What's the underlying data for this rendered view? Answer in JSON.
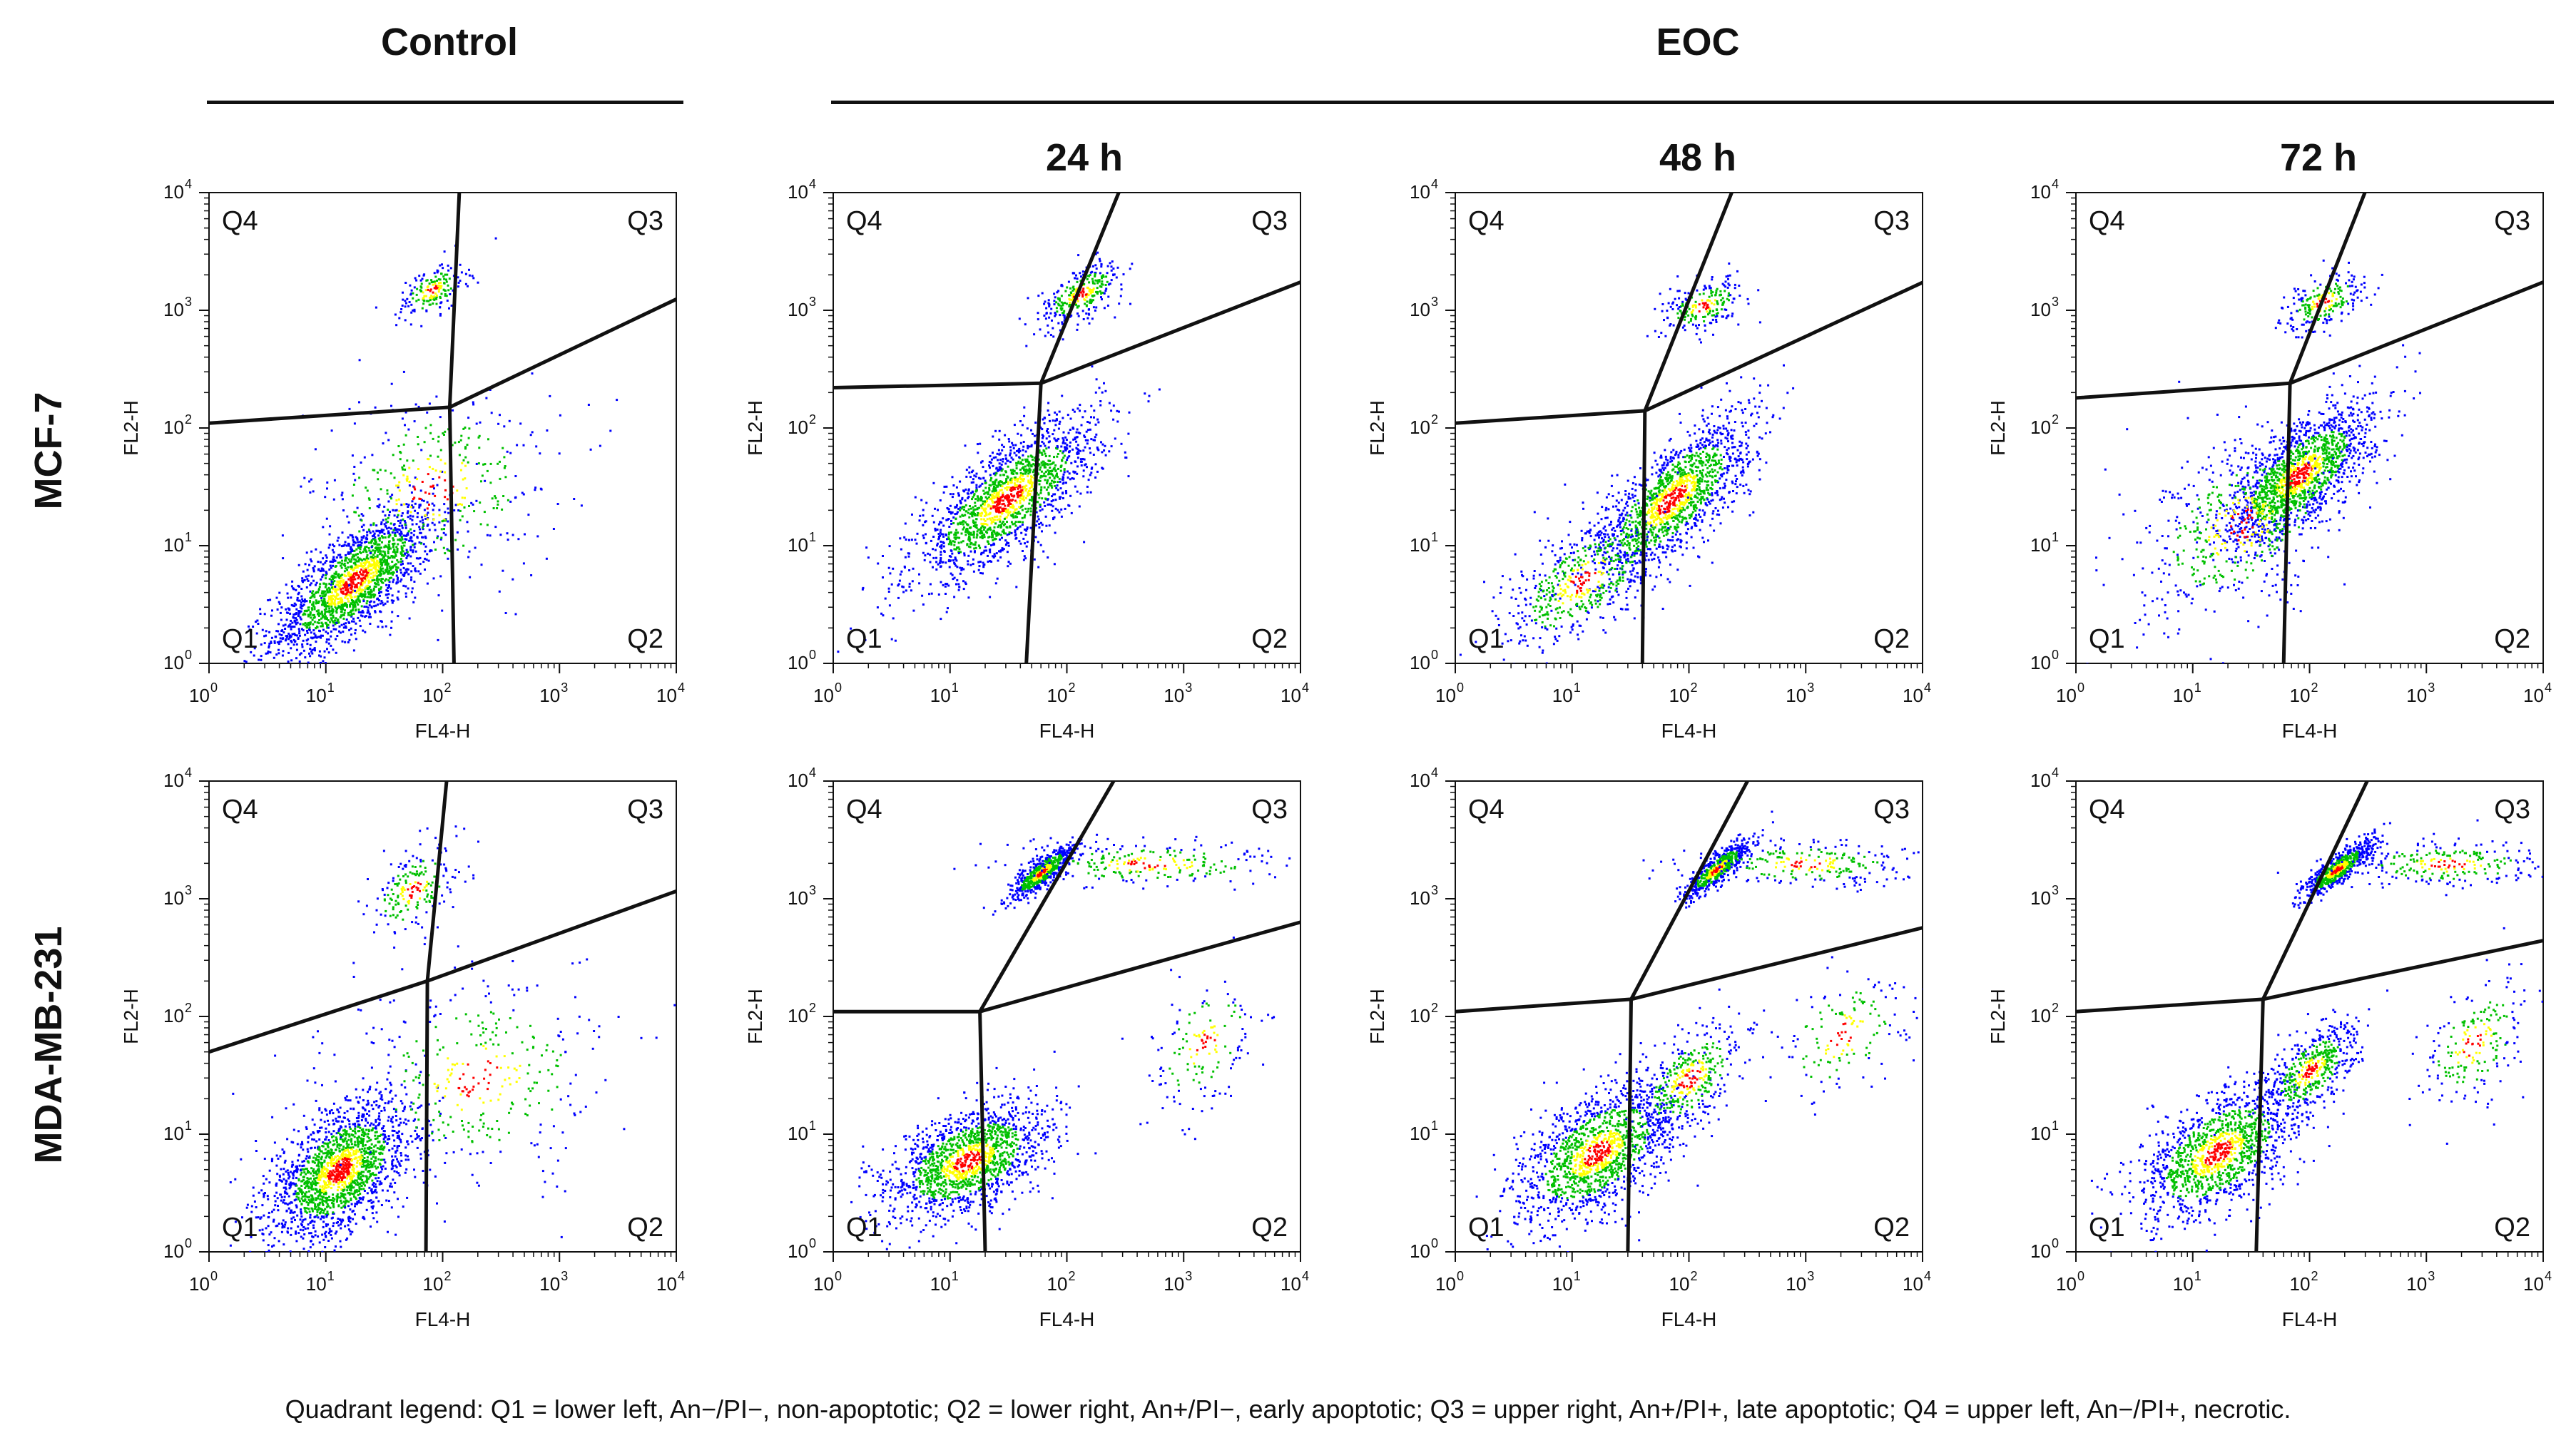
{
  "figure": {
    "column_groups": [
      {
        "label": "Control"
      },
      {
        "label": "EOC"
      }
    ],
    "time_labels": [
      "24 h",
      "48 h",
      "72 h"
    ],
    "row_labels": [
      "MCF-7",
      "MDA-MB-231"
    ],
    "caption": "Quadrant legend: Q1 = lower left, An−/PI−, non-apoptotic; Q2 = lower right, An+/PI−, early apoptotic; Q3 = upper right, An+/PI+, late apoptotic; Q4 = upper left, An−/PI+, necrotic.",
    "colors": {
      "low_density": "#0000ff",
      "mid_density": "#00c000",
      "mid_high_density": "#ffff00",
      "high_density": "#ff0000",
      "gate_line": "#111111"
    }
  },
  "chart_data": [
    {
      "type": "scatter",
      "panel": "MCF-7 Control",
      "xlabel": "FL4-H",
      "ylabel": "FL2-H",
      "scale": "log10",
      "xlim": [
        1,
        10000
      ],
      "ylim": [
        1,
        10000
      ],
      "quadrant_labels": [
        "Q1",
        "Q2",
        "Q3",
        "Q4"
      ],
      "gate_vertical": [
        [
          125,
          1
        ],
        [
          115,
          150
        ],
        [
          140,
          12000
        ]
      ],
      "gate_horizontal": [
        [
          1,
          110
        ],
        [
          115,
          150
        ],
        [
          11000,
          1300
        ]
      ],
      "populations": [
        {
          "cx": 17,
          "cy": 5,
          "sx": 0.35,
          "sy": 0.32,
          "n": 1800,
          "r": 0.75
        },
        {
          "cx": 80,
          "cy": 30,
          "sx": 0.55,
          "sy": 0.45,
          "n": 400,
          "r": 0.2
        },
        {
          "cx": 80,
          "cy": 1500,
          "sx": 0.15,
          "sy": 0.12,
          "n": 180,
          "r": 0.5
        }
      ]
    },
    {
      "type": "scatter",
      "panel": "MCF-7 EOC 24 h",
      "xlabel": "FL4-H",
      "ylabel": "FL2-H",
      "scale": "log10",
      "xlim": [
        1,
        10000
      ],
      "ylim": [
        1,
        10000
      ],
      "quadrant_labels": [
        "Q1",
        "Q2",
        "Q3",
        "Q4"
      ],
      "gate_vertical": [
        [
          45,
          1
        ],
        [
          60,
          240
        ],
        [
          300,
          12000
        ]
      ],
      "gate_horizontal": [
        [
          1,
          220
        ],
        [
          60,
          240
        ],
        [
          11000,
          1800
        ]
      ],
      "populations": [
        {
          "cx": 30,
          "cy": 25,
          "sx": 0.4,
          "sy": 0.35,
          "n": 1700,
          "r": 0.75
        },
        {
          "cx": 130,
          "cy": 1400,
          "sx": 0.18,
          "sy": 0.14,
          "n": 300,
          "r": 0.6
        }
      ]
    },
    {
      "type": "scatter",
      "panel": "MCF-7 EOC 48 h",
      "xlabel": "FL4-H",
      "ylabel": "FL2-H",
      "scale": "log10",
      "xlim": [
        1,
        10000
      ],
      "ylim": [
        1,
        10000
      ],
      "quadrant_labels": [
        "Q1",
        "Q2",
        "Q3",
        "Q4"
      ],
      "gate_vertical": [
        [
          40,
          1
        ],
        [
          42,
          140
        ],
        [
          250,
          12000
        ]
      ],
      "gate_horizontal": [
        [
          1,
          110
        ],
        [
          42,
          140
        ],
        [
          11000,
          1800
        ]
      ],
      "populations": [
        {
          "cx": 70,
          "cy": 25,
          "sx": 0.35,
          "sy": 0.35,
          "n": 1500,
          "r": 0.75
        },
        {
          "cx": 12,
          "cy": 5,
          "sx": 0.35,
          "sy": 0.3,
          "n": 500,
          "r": 0.6
        },
        {
          "cx": 130,
          "cy": 1100,
          "sx": 0.18,
          "sy": 0.12,
          "n": 220,
          "r": 0.5
        }
      ]
    },
    {
      "type": "scatter",
      "panel": "MCF-7 EOC 72 h",
      "xlabel": "FL4-H",
      "ylabel": "FL2-H",
      "scale": "log10",
      "xlim": [
        1,
        10000
      ],
      "ylim": [
        1,
        10000
      ],
      "quadrant_labels": [
        "Q1",
        "Q2",
        "Q3",
        "Q4"
      ],
      "gate_vertical": [
        [
          60,
          1
        ],
        [
          68,
          240
        ],
        [
          320,
          12000
        ]
      ],
      "gate_horizontal": [
        [
          1,
          180
        ],
        [
          68,
          240
        ],
        [
          11000,
          1800
        ]
      ],
      "populations": [
        {
          "cx": 80,
          "cy": 40,
          "sx": 0.32,
          "sy": 0.3,
          "n": 1600,
          "r": 0.7
        },
        {
          "cx": 25,
          "cy": 15,
          "sx": 0.45,
          "sy": 0.4,
          "n": 500,
          "r": 0.4
        },
        {
          "cx": 130,
          "cy": 1200,
          "sx": 0.18,
          "sy": 0.13,
          "n": 220,
          "r": 0.5
        }
      ]
    },
    {
      "type": "scatter",
      "panel": "MDA-MB-231 Control",
      "xlabel": "FL4-H",
      "ylabel": "FL2-H",
      "scale": "log10",
      "xlim": [
        1,
        10000
      ],
      "ylim": [
        1,
        10000
      ],
      "quadrant_labels": [
        "Q1",
        "Q2",
        "Q3",
        "Q4"
      ],
      "gate_vertical": [
        [
          72,
          1
        ],
        [
          74,
          200
        ],
        [
          110,
          12000
        ]
      ],
      "gate_horizontal": [
        [
          1,
          50
        ],
        [
          74,
          200
        ],
        [
          11000,
          1200
        ]
      ],
      "populations": [
        {
          "cx": 13,
          "cy": 5,
          "sx": 0.3,
          "sy": 0.3,
          "n": 1800,
          "r": 0.5
        },
        {
          "cx": 200,
          "cy": 30,
          "sx": 0.6,
          "sy": 0.45,
          "n": 350,
          "r": 0.1
        },
        {
          "cx": 55,
          "cy": 1200,
          "sx": 0.2,
          "sy": 0.2,
          "n": 200,
          "r": 0.5
        }
      ]
    },
    {
      "type": "scatter",
      "panel": "MDA-MB-231 EOC 24 h",
      "xlabel": "FL4-H",
      "ylabel": "FL2-H",
      "scale": "log10",
      "xlim": [
        1,
        10000
      ],
      "ylim": [
        1,
        10000
      ],
      "quadrant_labels": [
        "Q1",
        "Q2",
        "Q3",
        "Q4"
      ],
      "gate_vertical": [
        [
          20,
          1
        ],
        [
          18,
          110
        ],
        [
          280,
          12000
        ]
      ],
      "gate_horizontal": [
        [
          1,
          110
        ],
        [
          18,
          110
        ],
        [
          11000,
          650
        ]
      ],
      "populations": [
        {
          "cx": 14,
          "cy": 6,
          "sx": 0.35,
          "sy": 0.25,
          "n": 1500,
          "r": 0.5
        },
        {
          "cx": 60,
          "cy": 1700,
          "sx": 0.14,
          "sy": 0.12,
          "n": 600,
          "r": 0.85
        },
        {
          "cx": 500,
          "cy": 2000,
          "sx": 0.6,
          "sy": 0.1,
          "n": 250,
          "r": 0.0
        },
        {
          "cx": 1500,
          "cy": 60,
          "sx": 0.25,
          "sy": 0.3,
          "n": 150,
          "r": 0.4
        }
      ]
    },
    {
      "type": "scatter",
      "panel": "MDA-MB-231 EOC 48 h",
      "xlabel": "FL4-H",
      "ylabel": "FL2-H",
      "scale": "log10",
      "xlim": [
        1,
        10000
      ],
      "ylim": [
        1,
        10000
      ],
      "quadrant_labels": [
        "Q1",
        "Q2",
        "Q3",
        "Q4"
      ],
      "gate_vertical": [
        [
          30,
          1
        ],
        [
          32,
          140
        ],
        [
          350,
          12000
        ]
      ],
      "gate_horizontal": [
        [
          1,
          110
        ],
        [
          32,
          140
        ],
        [
          11000,
          580
        ]
      ],
      "populations": [
        {
          "cx": 16,
          "cy": 7,
          "sx": 0.35,
          "sy": 0.3,
          "n": 1400,
          "r": 0.55
        },
        {
          "cx": 100,
          "cy": 30,
          "sx": 0.25,
          "sy": 0.25,
          "n": 400,
          "r": 0.6
        },
        {
          "cx": 170,
          "cy": 1800,
          "sx": 0.14,
          "sy": 0.12,
          "n": 600,
          "r": 0.85
        },
        {
          "cx": 1000,
          "cy": 2000,
          "sx": 0.5,
          "sy": 0.1,
          "n": 250,
          "r": 0.0
        },
        {
          "cx": 2000,
          "cy": 70,
          "sx": 0.3,
          "sy": 0.3,
          "n": 150,
          "r": 0.4
        }
      ]
    },
    {
      "type": "scatter",
      "panel": "MDA-MB-231 EOC 72 h",
      "xlabel": "FL4-H",
      "ylabel": "FL2-H",
      "scale": "log10",
      "xlim": [
        1,
        10000
      ],
      "ylim": [
        1,
        10000
      ],
      "quadrant_labels": [
        "Q1",
        "Q2",
        "Q3",
        "Q4"
      ],
      "gate_vertical": [
        [
          35,
          1
        ],
        [
          40,
          140
        ],
        [
          340,
          12000
        ]
      ],
      "gate_horizontal": [
        [
          1,
          110
        ],
        [
          40,
          140
        ],
        [
          11000,
          450
        ]
      ],
      "populations": [
        {
          "cx": 16,
          "cy": 7,
          "sx": 0.35,
          "sy": 0.3,
          "n": 1300,
          "r": 0.55
        },
        {
          "cx": 100,
          "cy": 35,
          "sx": 0.2,
          "sy": 0.2,
          "n": 500,
          "r": 0.6
        },
        {
          "cx": 170,
          "cy": 1800,
          "sx": 0.15,
          "sy": 0.12,
          "n": 650,
          "r": 0.85
        },
        {
          "cx": 1500,
          "cy": 2000,
          "sx": 0.45,
          "sy": 0.1,
          "n": 250,
          "r": 0.0
        },
        {
          "cx": 2500,
          "cy": 60,
          "sx": 0.25,
          "sy": 0.3,
          "n": 200,
          "r": 0.5
        }
      ]
    }
  ]
}
